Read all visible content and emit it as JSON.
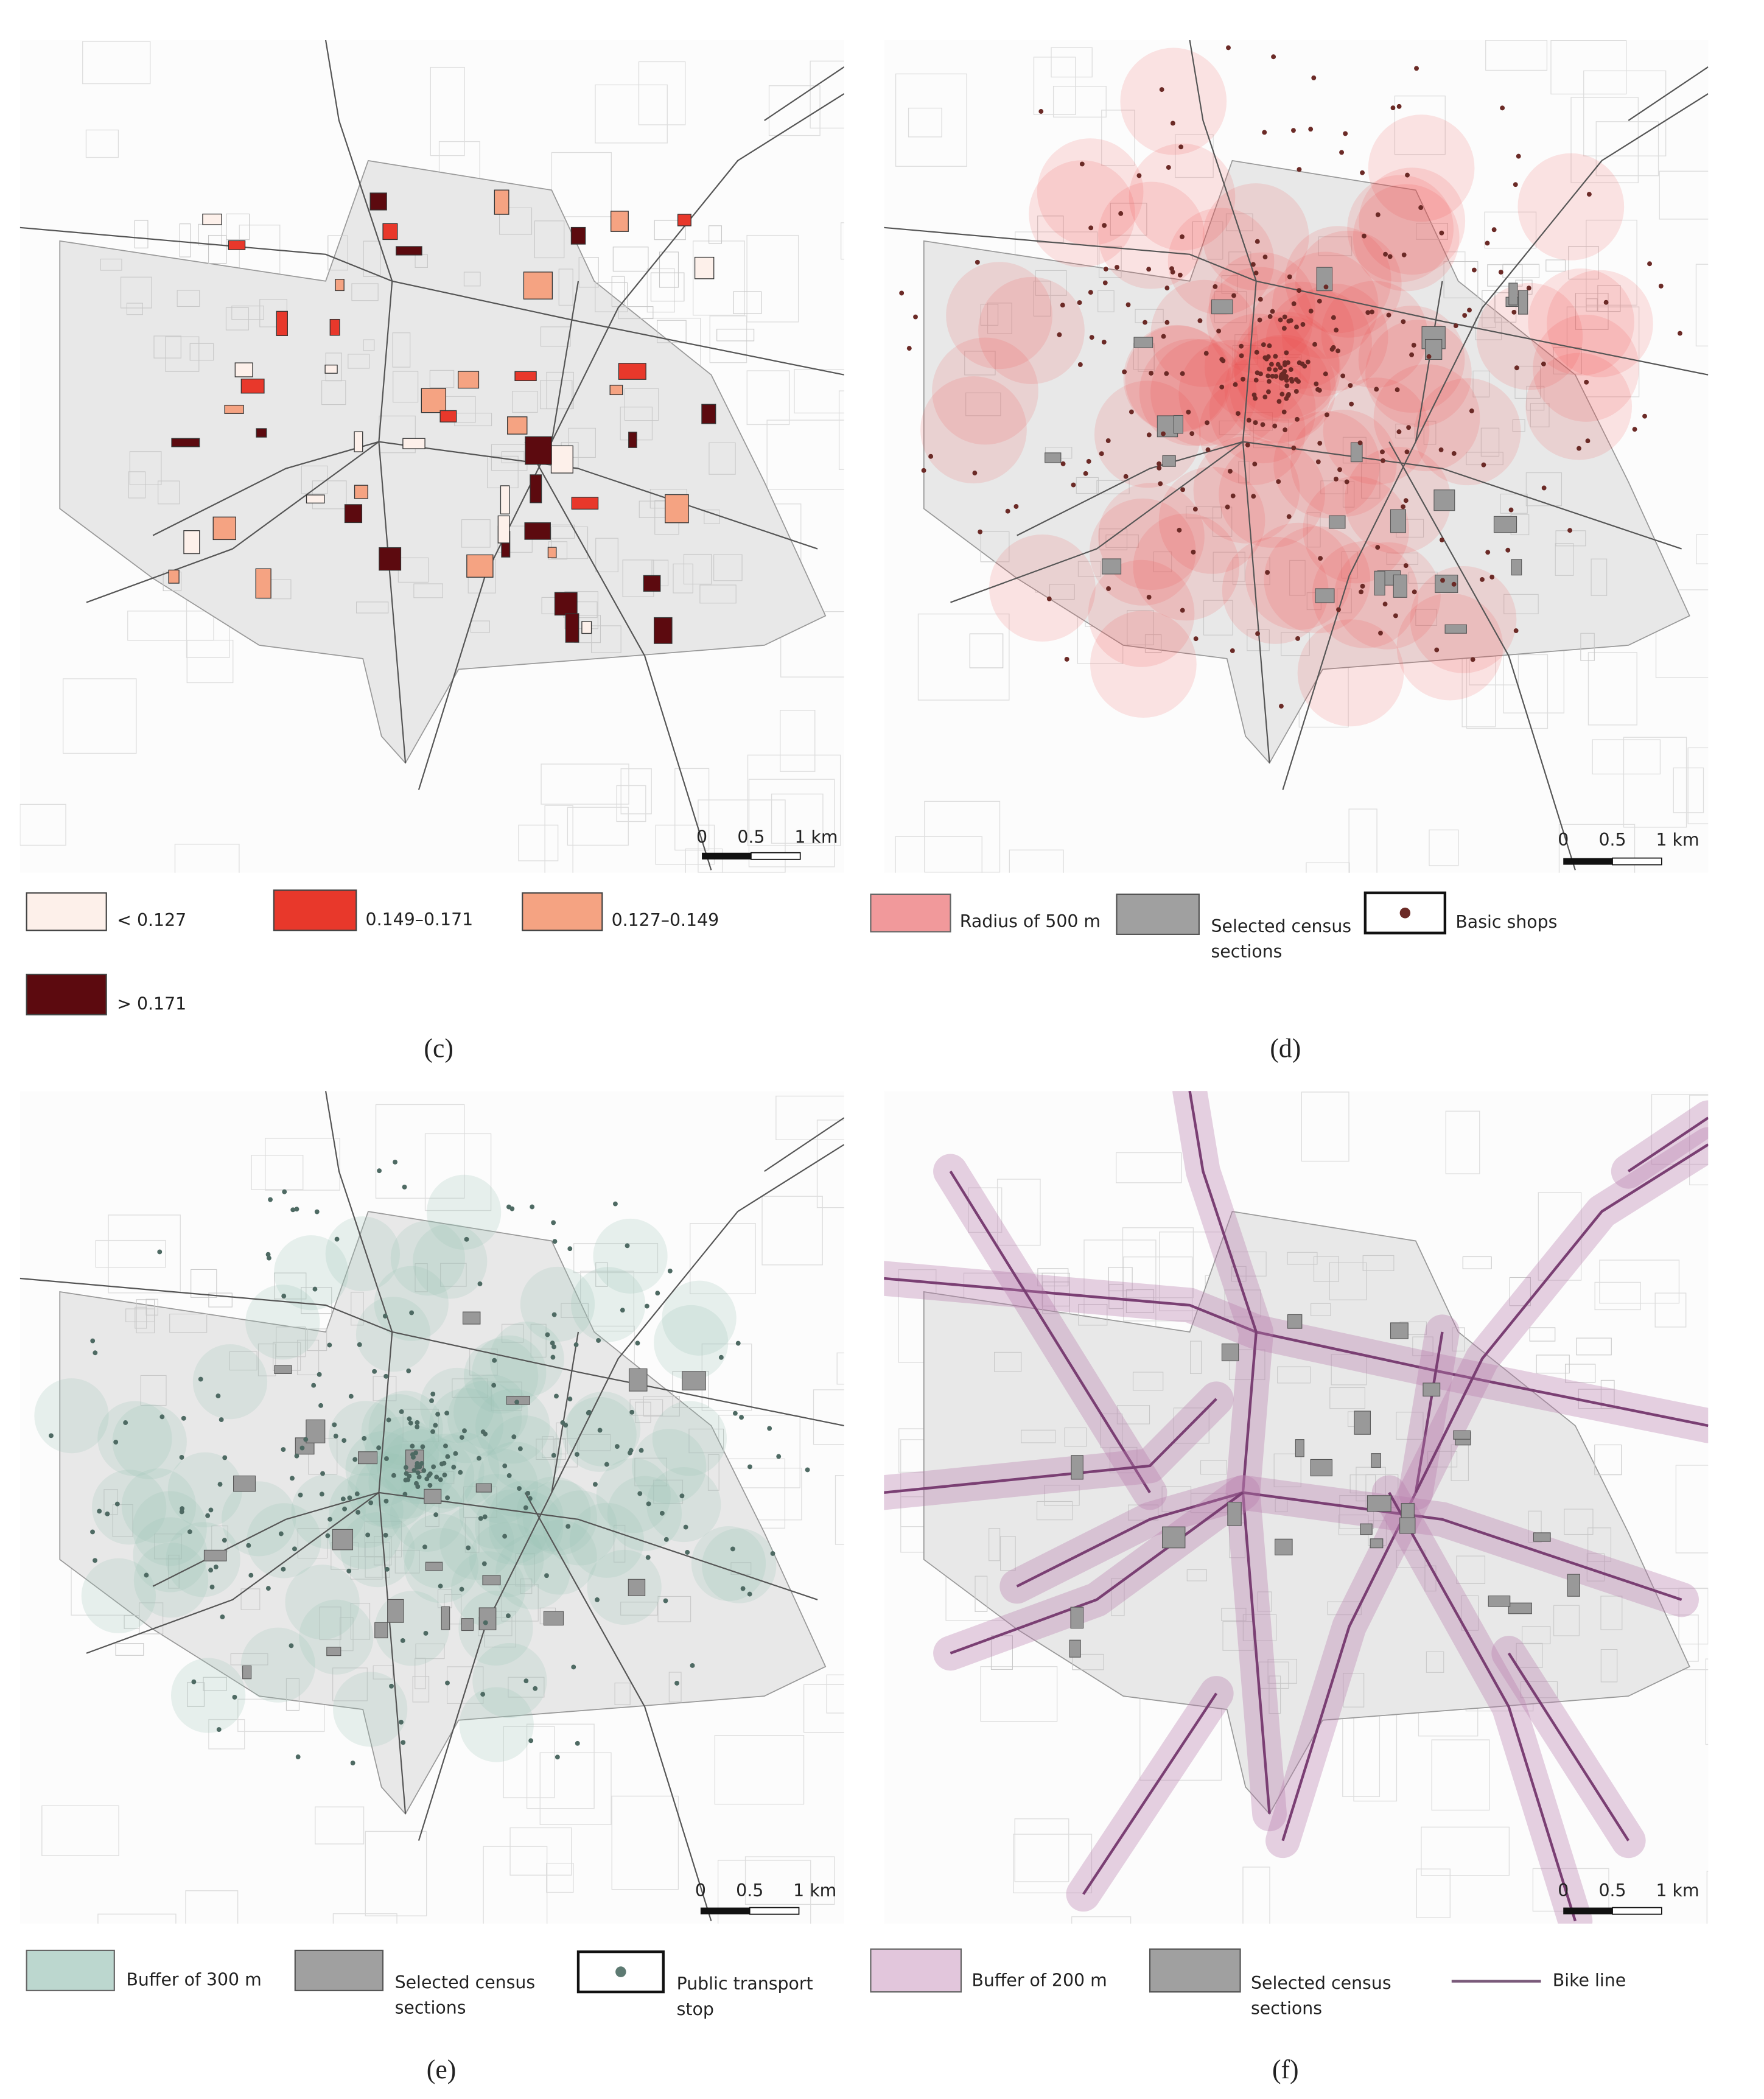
{
  "panels": [
    {
      "label": "(c)",
      "scale": [
        "0",
        "0.5",
        "1 km"
      ],
      "legend": [
        [
          "< 0.127"
        ],
        [
          "0.149–0.171"
        ],
        [
          "0.127–0.149"
        ],
        [
          "> 0.171"
        ]
      ]
    },
    {
      "label": "(d)",
      "scale": [
        "0",
        "0.5",
        "1 km"
      ],
      "legend": [
        [
          "Radius of 500 m"
        ],
        [
          "Selected census",
          "sections"
        ],
        [
          "Basic shops"
        ]
      ]
    },
    {
      "label": "(e)",
      "scale": [
        "0",
        "0.5",
        "1 km"
      ],
      "legend": [
        [
          "Buffer of 300 m"
        ],
        [
          "Selected census",
          "sections"
        ],
        [
          "Public transport",
          "stop"
        ]
      ]
    },
    {
      "label": "(f)",
      "scale": [
        "0",
        "0.5",
        "1 km"
      ],
      "legend": [
        [
          "Buffer of 200 m"
        ],
        [
          "Selected census",
          "sections"
        ],
        [
          "Bike line"
        ]
      ]
    }
  ]
}
